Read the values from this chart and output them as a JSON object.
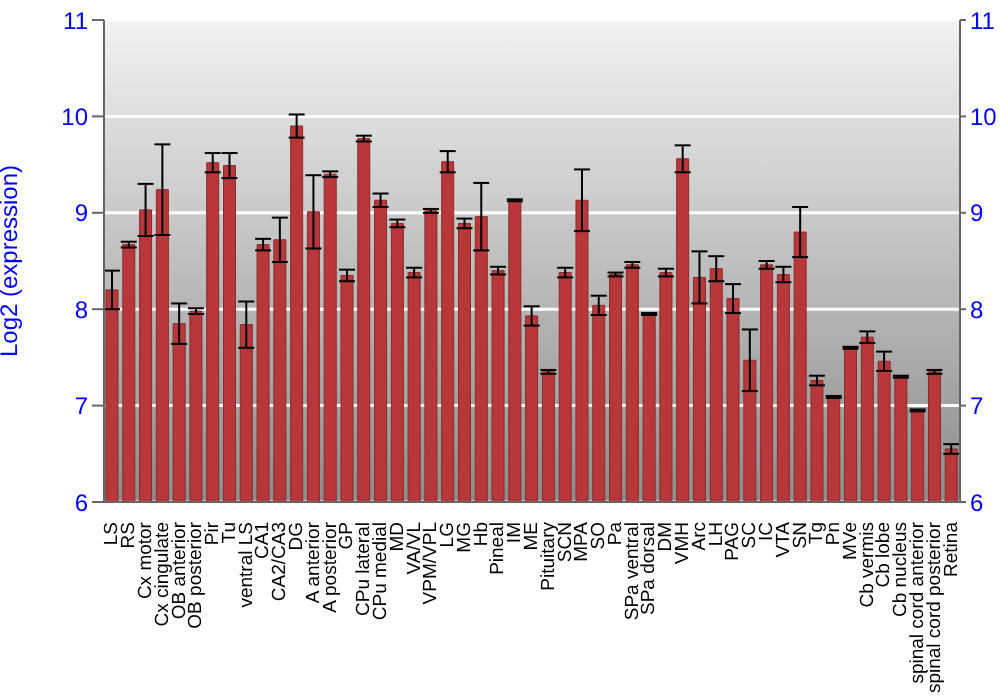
{
  "chart_data": {
    "type": "bar",
    "ylabel": "Log2 (expression)",
    "categories": [
      "LS",
      "RS",
      "Cx motor",
      "Cx cingulate",
      "OB anterior",
      "OB posterior",
      "Pir",
      "Tu",
      "ventral LS",
      "CA1",
      "CA2/CA3",
      "DG",
      "A anterior",
      "A posterior",
      "GP",
      "CPu lateral",
      "CPu medial",
      "MD",
      "VA/VL",
      "VPM/VPL",
      "LG",
      "MG",
      "Hb",
      "Pineal",
      "IM",
      "ME",
      "Pituitary",
      "SCN",
      "MPA",
      "SO",
      "Pa",
      "SPa ventral",
      "SPa dorsal",
      "DM",
      "VMH",
      "Arc",
      "LH",
      "PAG",
      "SC",
      "IC",
      "VTA",
      "SN",
      "Tg",
      "Pn",
      "MVe",
      "Cb vermis",
      "Cb lobe",
      "Cb nucleus",
      "spinal cord anterior",
      "spinal cord posterior",
      "Retina"
    ],
    "values": [
      8.2,
      8.67,
      9.03,
      9.24,
      7.85,
      7.98,
      9.52,
      9.49,
      7.84,
      8.67,
      8.72,
      9.9,
      9.01,
      9.4,
      8.35,
      9.77,
      9.13,
      8.89,
      8.38,
      9.02,
      9.53,
      8.89,
      8.96,
      8.4,
      9.13,
      7.93,
      7.35,
      8.38,
      9.13,
      8.04,
      8.36,
      8.46,
      7.95,
      8.38,
      9.56,
      8.33,
      8.42,
      8.11,
      7.47,
      8.46,
      8.36,
      8.8,
      7.26,
      7.09,
      7.6,
      7.71,
      7.46,
      7.3,
      6.95,
      7.35,
      6.55
    ],
    "errors": [
      0.2,
      0.03,
      0.27,
      0.47,
      0.21,
      0.03,
      0.1,
      0.13,
      0.24,
      0.06,
      0.23,
      0.12,
      0.38,
      0.03,
      0.06,
      0.03,
      0.07,
      0.04,
      0.05,
      0.02,
      0.11,
      0.05,
      0.35,
      0.04,
      0.01,
      0.1,
      0.02,
      0.05,
      0.32,
      0.1,
      0.02,
      0.03,
      0.01,
      0.04,
      0.14,
      0.27,
      0.13,
      0.15,
      0.32,
      0.04,
      0.08,
      0.26,
      0.05,
      0.01,
      0.01,
      0.06,
      0.1,
      0.01,
      0.01,
      0.02,
      0.05
    ],
    "color": "#b8373a",
    "ylim": [
      6,
      11
    ],
    "yticks": [
      6,
      7,
      8,
      9,
      10,
      11
    ],
    "y2lim": [
      6,
      11
    ],
    "y2ticks": [
      6,
      7,
      8,
      9,
      10,
      11
    ],
    "grid": "y",
    "legend": false
  }
}
